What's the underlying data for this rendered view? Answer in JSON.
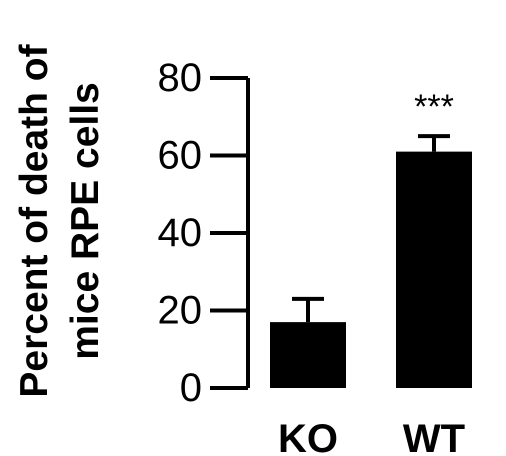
{
  "chart_data": {
    "type": "bar",
    "categories": [
      "KO",
      "WT"
    ],
    "values": [
      17,
      61
    ],
    "errors": [
      6,
      4
    ],
    "ylabel_lines": [
      "Percent of death of",
      "mice RPE cells"
    ],
    "yticks": [
      0,
      20,
      40,
      60,
      80
    ],
    "ylim": [
      0,
      80
    ],
    "annotations": [
      "",
      "***"
    ],
    "bar_color": "#000000",
    "grid": false
  }
}
